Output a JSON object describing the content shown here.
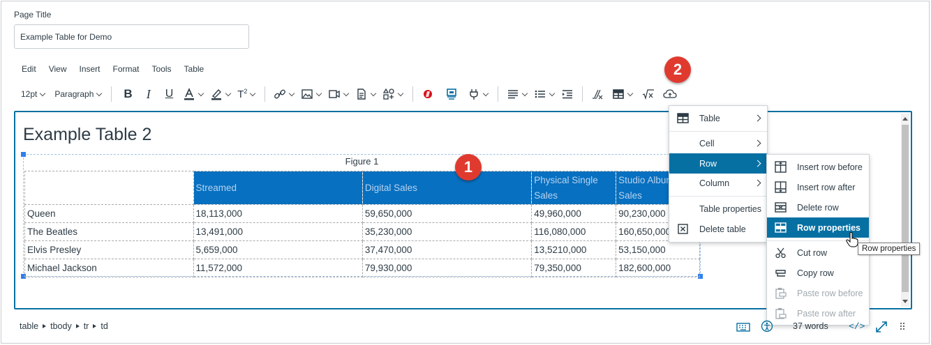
{
  "page_title": {
    "label": "Page Title",
    "value": "Example Table for Demo"
  },
  "menubar": [
    "Edit",
    "View",
    "Insert",
    "Format",
    "Tools",
    "Table"
  ],
  "toolbar": {
    "font_size": "12pt",
    "block_format": "Paragraph"
  },
  "editor": {
    "heading": "Example Table 2",
    "caption": "Figure 1",
    "header_row": [
      "",
      "Streamed",
      "Digital Sales",
      "Physical Single Sales",
      "Studio Album Sales"
    ],
    "rows": [
      [
        "Queen",
        "18,113,000",
        "59,650,000",
        "49,960,000",
        "90,230,000"
      ],
      [
        "The Beatles",
        "13,491,000",
        "35,230,000",
        "116,080,000",
        "160,650,000"
      ],
      [
        "Elvis Presley",
        "5,659,000",
        "37,470,000",
        "13,5210,000",
        "53,150,000"
      ],
      [
        "Michael Jackson",
        "11,572,000",
        "79,930,000",
        "79,350,000",
        "182,600,000"
      ]
    ]
  },
  "badges": {
    "one": "1",
    "two": "2"
  },
  "table_menu": {
    "items": [
      {
        "label": "Table",
        "icon": "table-icon"
      },
      {
        "label": "Cell"
      },
      {
        "label": "Row"
      },
      {
        "label": "Column"
      },
      {
        "label": "Table properties"
      },
      {
        "label": "Delete table",
        "icon": "delete-table-icon"
      }
    ]
  },
  "row_menu": {
    "items": [
      {
        "label": "Insert row before",
        "icon": "insert-row-before-icon"
      },
      {
        "label": "Insert row after",
        "icon": "insert-row-after-icon"
      },
      {
        "label": "Delete row",
        "icon": "delete-row-icon"
      },
      {
        "label": "Row properties",
        "icon": "row-properties-icon"
      },
      {
        "label": "Cut row",
        "icon": "cut-icon"
      },
      {
        "label": "Copy row",
        "icon": "copy-icon"
      },
      {
        "label": "Paste row before",
        "icon": "paste-icon"
      },
      {
        "label": "Paste row after",
        "icon": "paste-icon"
      }
    ]
  },
  "tooltip": "Row properties",
  "status_bar": {
    "path": [
      "table",
      "tbody",
      "tr",
      "td"
    ],
    "word_count": "37 words"
  },
  "colors": {
    "accent": "#0770a3",
    "header_fill": "#0770c0",
    "badge": "#e03a2f"
  }
}
